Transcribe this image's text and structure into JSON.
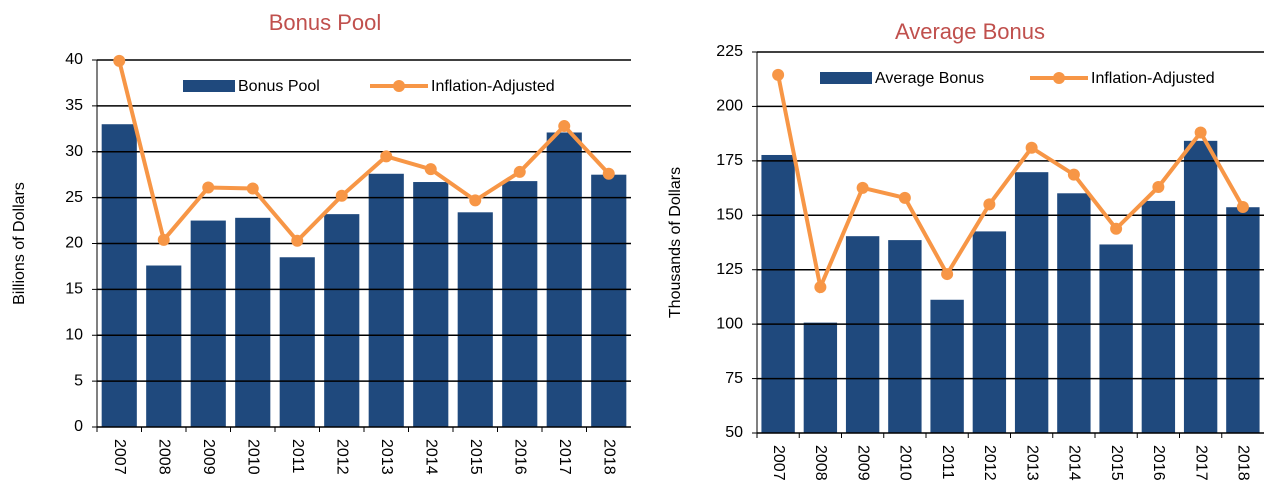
{
  "chart_data": [
    {
      "type": "combo",
      "title": "Bonus Pool",
      "y_label": "Billions of Dollars",
      "categories": [
        "2007",
        "2008",
        "2009",
        "2010",
        "2011",
        "2012",
        "2013",
        "2014",
        "2015",
        "2016",
        "2017",
        "2018"
      ],
      "series": [
        {
          "name": "Bonus Pool",
          "type": "bar",
          "color": "#1f497d",
          "values": [
            33.0,
            17.6,
            22.5,
            22.8,
            18.5,
            23.2,
            27.6,
            26.7,
            23.4,
            26.8,
            32.1,
            27.5
          ]
        },
        {
          "name": "Inflation-Adjusted",
          "type": "line",
          "color": "#f79646",
          "values": [
            39.9,
            20.4,
            26.1,
            26.0,
            20.3,
            25.2,
            29.5,
            28.1,
            24.7,
            27.8,
            32.8,
            27.6
          ]
        }
      ],
      "ylim": [
        0,
        40
      ],
      "yticks": [
        0,
        5,
        10,
        15,
        20,
        25,
        30,
        35,
        40
      ],
      "grid": true
    },
    {
      "type": "combo",
      "title": "Average Bonus",
      "y_label": "Thousands of Dollars",
      "categories": [
        "2007",
        "2008",
        "2009",
        "2010",
        "2011",
        "2012",
        "2013",
        "2014",
        "2015",
        "2016",
        "2017",
        "2018"
      ],
      "series": [
        {
          "name": "Average Bonus",
          "type": "bar",
          "color": "#1f497d",
          "values": [
            177.7,
            100.7,
            140.4,
            138.6,
            111.2,
            142.6,
            169.8,
            160.1,
            136.6,
            156.6,
            184.2,
            153.7
          ]
        },
        {
          "name": "Inflation-Adjusted",
          "type": "line",
          "color": "#f79646",
          "values": [
            214.5,
            117.0,
            162.6,
            158.0,
            123.0,
            155.0,
            181.0,
            168.7,
            143.8,
            163.0,
            188.0,
            153.8
          ]
        }
      ],
      "ylim": [
        50,
        225
      ],
      "yticks": [
        50,
        75,
        100,
        125,
        150,
        175,
        200,
        225
      ],
      "grid": true
    }
  ]
}
